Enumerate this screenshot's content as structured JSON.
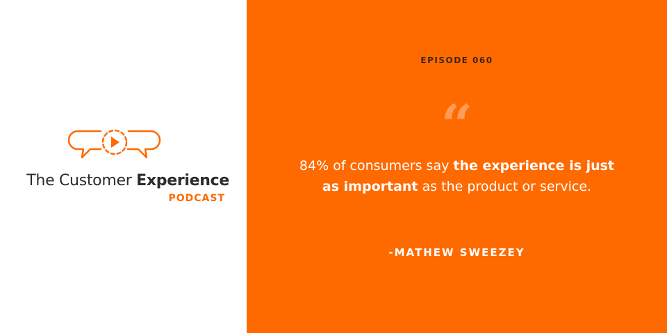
{
  "logo": {
    "title_regular": "The Customer",
    "title_bold": "Experience",
    "subtitle": "PODCAST"
  },
  "episode": "EPISODE 060",
  "quote_mark": "“",
  "quote": {
    "parts": [
      "84% of consumers say",
      "the experience is just",
      "as important",
      "as the product or service."
    ]
  },
  "attribution": "-MATHEW SWEEZEY"
}
